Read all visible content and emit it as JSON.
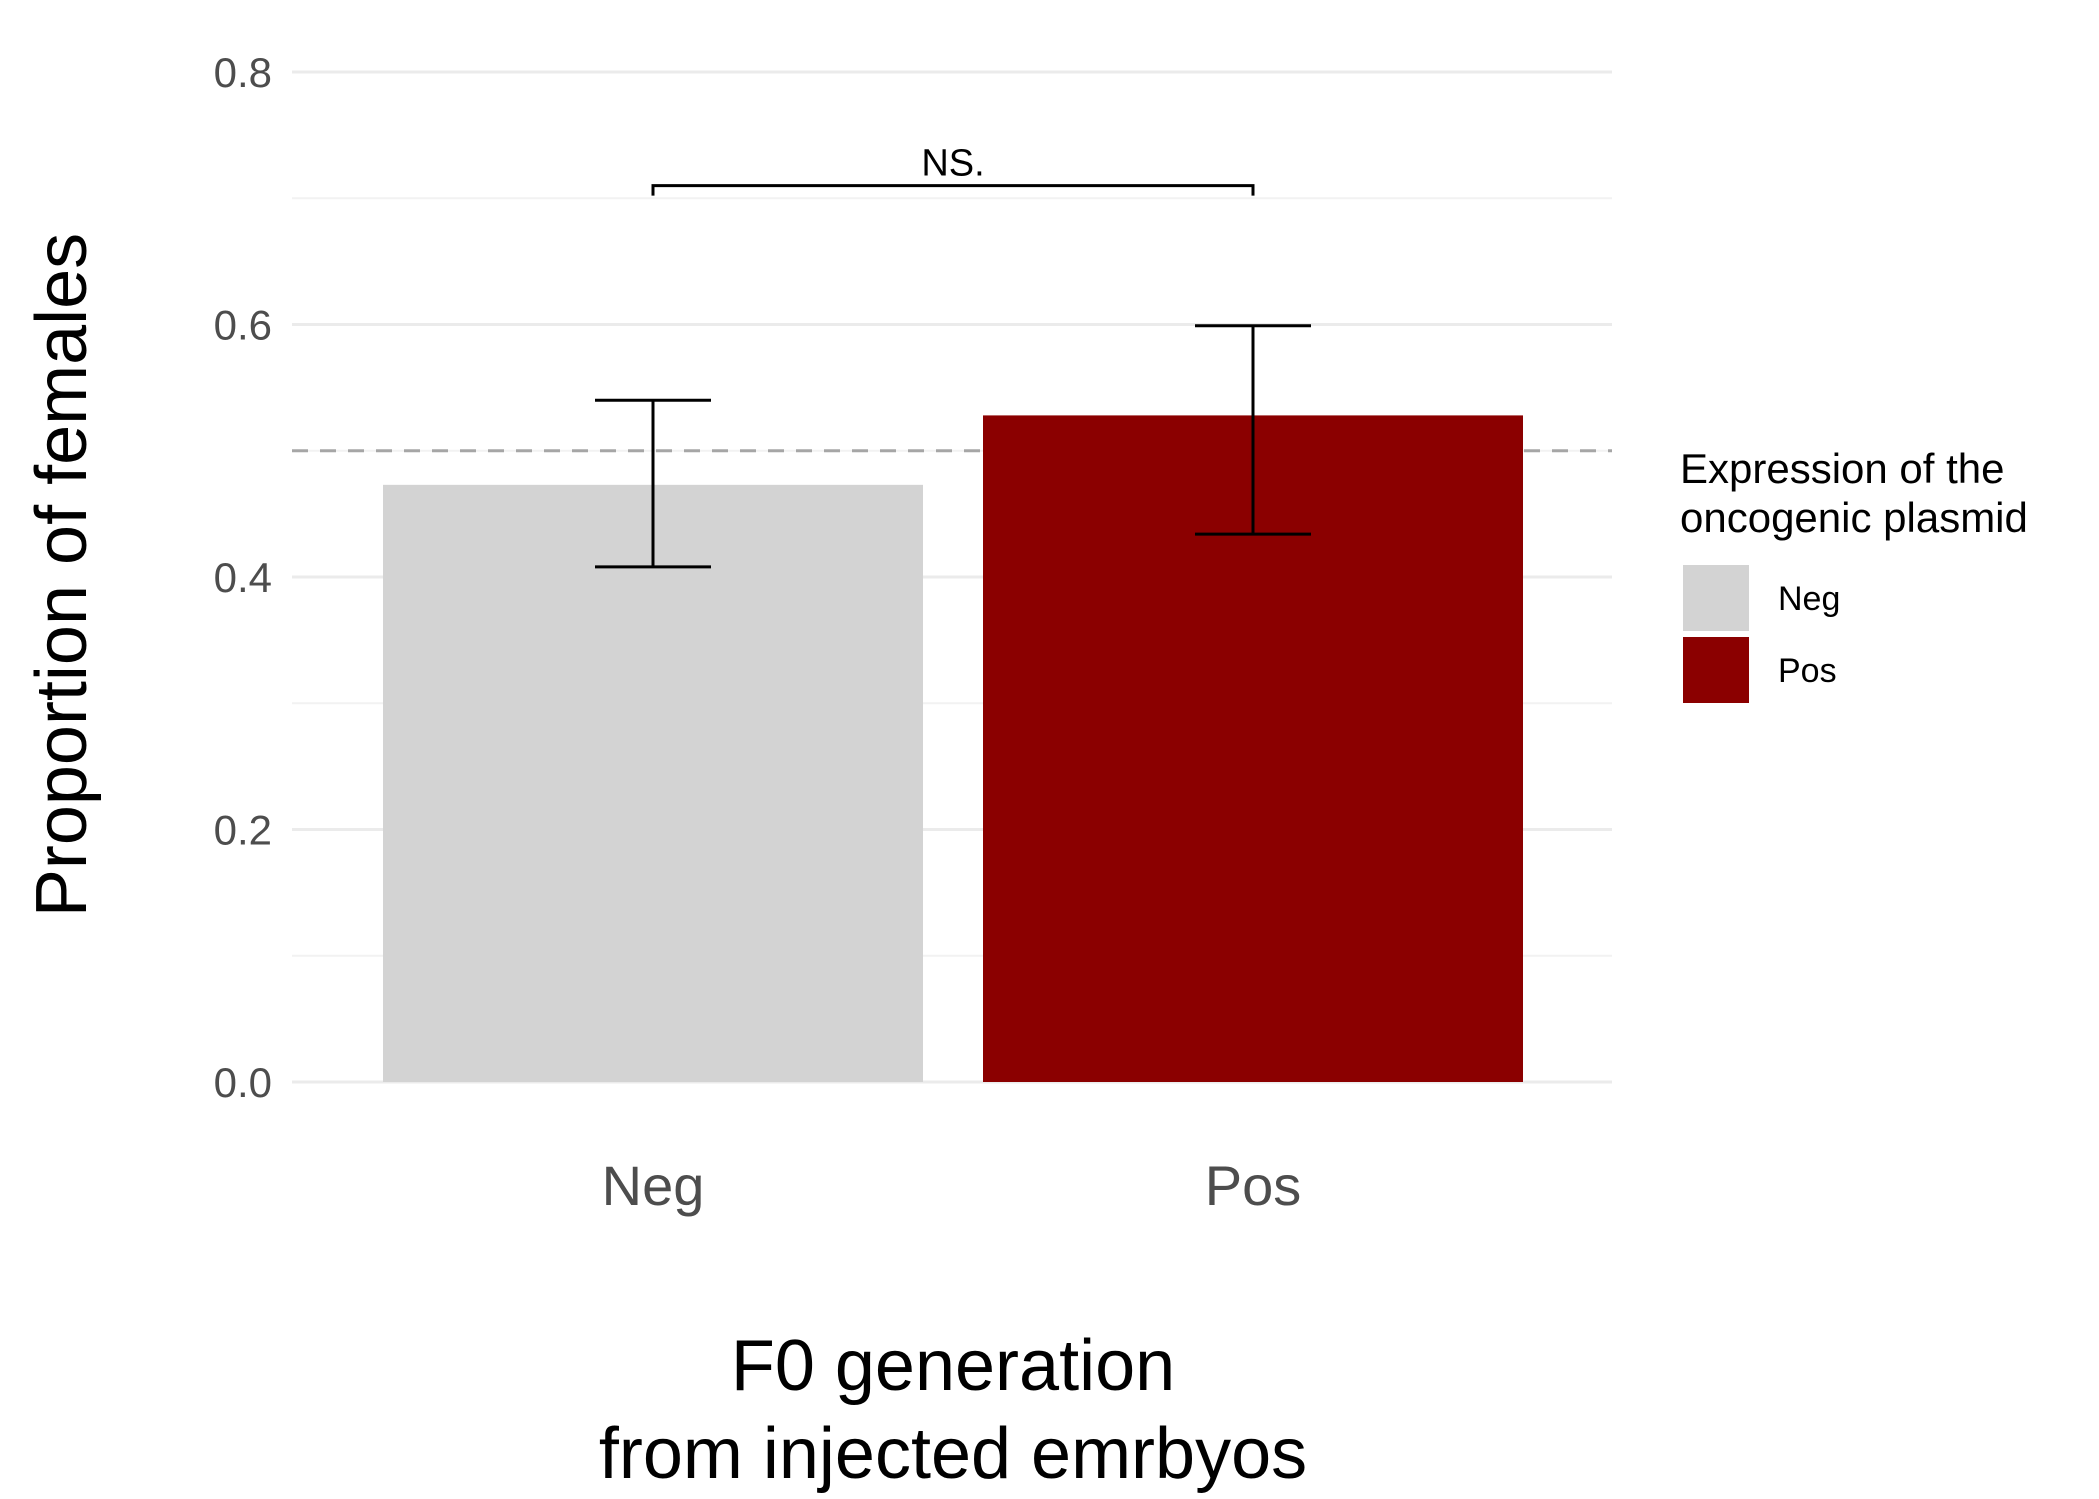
{
  "chart_data": {
    "type": "bar",
    "categories": [
      "Neg",
      "Pos"
    ],
    "values": [
      0.473,
      0.528
    ],
    "error_bars": [
      {
        "lower": 0.408,
        "upper": 0.54
      },
      {
        "lower": 0.434,
        "upper": 0.599
      }
    ],
    "colors": [
      "#d3d3d3",
      "#8b0000"
    ],
    "ylim": [
      0,
      0.8
    ],
    "yticks": [
      "0.0",
      "0.2",
      "0.4",
      "0.6",
      "0.8"
    ],
    "ytick_values": [
      0,
      0.2,
      0.4,
      0.6,
      0.8
    ],
    "reference_line": 0.5,
    "xlabel_lines": [
      "F0 generation",
      "from injected emrbyos"
    ],
    "ylabel": "Proportion of females",
    "significance": {
      "label": "NS.",
      "y": 0.71
    },
    "legend": {
      "title_lines": [
        "Expression of the",
        "oncogenic plasmid"
      ],
      "entries": [
        {
          "label": "Neg",
          "color": "#d3d3d3"
        },
        {
          "label": "Pos",
          "color": "#8b0000"
        }
      ],
      "placement": "right"
    },
    "grid": true
  }
}
